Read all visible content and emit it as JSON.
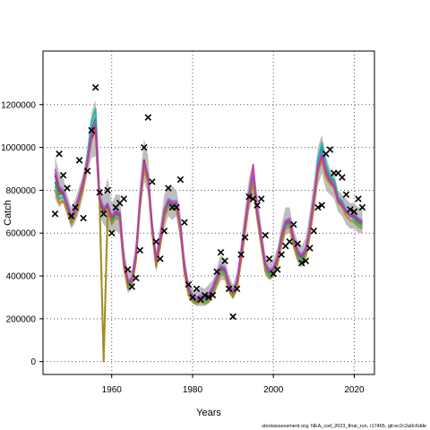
{
  "chart_data": {
    "type": "line",
    "xlabel": "Years",
    "ylabel": "Catch",
    "xlim": [
      1943,
      2025
    ],
    "ylim": [
      -60000,
      1450000
    ],
    "x_ticks": [
      1960,
      1980,
      2000,
      2020
    ],
    "y_ticks": [
      0,
      200000,
      400000,
      600000,
      800000,
      1000000,
      1200000
    ],
    "y_tick_labels": [
      "0",
      "200000",
      "400000",
      "600000",
      "800000",
      "1000000",
      "1200000"
    ],
    "grid": true,
    "caption": "stockassessment.org, NEA_cod_2023_final_run, r17465, git:ec2c2a0c6dde",
    "band": {
      "x": [
        1946,
        1947,
        1948,
        1949,
        1950,
        1951,
        1952,
        1953,
        1954,
        1955,
        1956,
        1957,
        1958,
        1959,
        1960,
        1961,
        1962,
        1963,
        1964,
        1965,
        1966,
        1967,
        1968,
        1969,
        1970,
        1971,
        1972,
        1973,
        1974,
        1975,
        1976,
        1977,
        1978,
        1979,
        1980,
        1981,
        1982,
        1983,
        1984,
        1985,
        1986,
        1987,
        1988,
        1989,
        1990,
        1991,
        1992,
        1993,
        1994,
        1995,
        1996,
        1997,
        1998,
        1999,
        2000,
        2001,
        2002,
        2003,
        2004,
        2005,
        2006,
        2007,
        2008,
        2009,
        2010,
        2011,
        2012,
        2013,
        2014,
        2015,
        2016,
        2017,
        2018,
        2019,
        2020,
        2021,
        2022
      ],
      "lower": [
        760000,
        720000,
        740000,
        680000,
        620000,
        650000,
        700000,
        780000,
        880000,
        950000,
        960000,
        680000,
        640000,
        620000,
        600000,
        610000,
        600000,
        420000,
        320000,
        340000,
        450000,
        680000,
        840000,
        780000,
        580000,
        420000,
        520000,
        620000,
        680000,
        660000,
        680000,
        560000,
        400000,
        300000,
        270000,
        260000,
        260000,
        260000,
        270000,
        300000,
        340000,
        380000,
        380000,
        320000,
        290000,
        330000,
        440000,
        560000,
        700000,
        770000,
        640000,
        520000,
        400000,
        380000,
        390000,
        430000,
        520000,
        590000,
        600000,
        520000,
        460000,
        440000,
        470000,
        560000,
        680000,
        820000,
        880000,
        800000,
        780000,
        760000,
        700000,
        680000,
        640000,
        620000,
        620000,
        600000,
        600000
      ],
      "upper": [
        960000,
        880000,
        860000,
        780000,
        720000,
        760000,
        820000,
        880000,
        1000000,
        1160000,
        1220000,
        820000,
        780000,
        860000,
        740000,
        780000,
        780000,
        540000,
        420000,
        430000,
        560000,
        840000,
        1040000,
        960000,
        680000,
        520000,
        640000,
        780000,
        820000,
        820000,
        800000,
        700000,
        500000,
        380000,
        340000,
        330000,
        350000,
        340000,
        360000,
        380000,
        440000,
        500000,
        480000,
        400000,
        360000,
        420000,
        560000,
        720000,
        860000,
        930000,
        780000,
        640000,
        500000,
        470000,
        480000,
        530000,
        640000,
        720000,
        720000,
        620000,
        560000,
        540000,
        580000,
        700000,
        840000,
        1000000,
        1060000,
        960000,
        900000,
        880000,
        800000,
        780000,
        760000,
        740000,
        740000,
        720000,
        720000
      ]
    },
    "series": [
      {
        "color": "#8B1A1A",
        "values": [
          870000,
          800000,
          780000,
          720000,
          660000,
          700000,
          760000,
          830000,
          930000,
          1040000,
          1080000,
          740000,
          700000,
          730000,
          670000,
          700000,
          690000,
          470000,
          370000,
          380000,
          500000,
          750000,
          940000,
          860000,
          630000,
          470000,
          570000,
          700000,
          750000,
          740000,
          740000,
          630000,
          440000,
          340000,
          300000,
          290000,
          300000,
          300000,
          310000,
          340000,
          390000,
          440000,
          430000,
          360000,
          320000,
          370000,
          500000,
          640000,
          780000,
          860000,
          700000,
          570000,
          450000,
          420000,
          430000,
          480000,
          580000,
          650000,
          660000,
          570000,
          510000,
          490000,
          520000,
          620000,
          760000,
          900000,
          960000,
          880000,
          840000,
          820000,
          750000,
          730000,
          700000,
          680000,
          680000,
          660000,
          650000
        ]
      },
      {
        "color": "#228B22",
        "values": [
          840000,
          780000,
          790000,
          730000,
          670000,
          710000,
          770000,
          840000,
          950000,
          1080000,
          1140000,
          760000,
          710000,
          720000,
          660000,
          690000,
          680000,
          460000,
          360000,
          370000,
          490000,
          740000,
          920000,
          850000,
          620000,
          460000,
          560000,
          690000,
          740000,
          730000,
          730000,
          620000,
          430000,
          330000,
          290000,
          280000,
          290000,
          290000,
          300000,
          330000,
          380000,
          430000,
          420000,
          350000,
          310000,
          360000,
          490000,
          630000,
          770000,
          850000,
          690000,
          560000,
          440000,
          410000,
          420000,
          470000,
          570000,
          640000,
          650000,
          560000,
          500000,
          480000,
          510000,
          610000,
          750000,
          920000,
          1000000,
          900000,
          860000,
          840000,
          760000,
          740000,
          700000,
          680000,
          670000,
          650000,
          640000
        ]
      },
      {
        "color": "#20B2AA",
        "values": [
          820000,
          760000,
          770000,
          710000,
          650000,
          690000,
          750000,
          820000,
          960000,
          1120000,
          1180000,
          750000,
          700,
          700000,
          650000,
          680000,
          670000,
          450000,
          350000,
          360000,
          480000,
          730000,
          910000,
          840000,
          610000,
          450000,
          550000,
          680000,
          730000,
          720000,
          720000,
          610000,
          420000,
          320000,
          280000,
          270000,
          280000,
          280000,
          290000,
          320000,
          370000,
          420000,
          410000,
          340000,
          300000,
          350000,
          480000,
          620000,
          760000,
          840000,
          680000,
          550000,
          430000,
          400000,
          410000,
          460000,
          560000,
          630000,
          640000,
          550000,
          490000,
          470000,
          500000,
          600000,
          740000,
          940000,
          1020000,
          920000,
          870000,
          850000,
          770000,
          750000,
          710000,
          690000,
          660000,
          640000,
          630000
        ]
      },
      {
        "color": "#B8860B",
        "values": [
          800000,
          740000,
          750000,
          700000,
          640000,
          680000,
          740000,
          810000,
          920000,
          1050000,
          1100000,
          730000,
          690,
          710000,
          640000,
          670000,
          660000,
          440000,
          340000,
          350000,
          470000,
          720000,
          900000,
          830000,
          600000,
          440000,
          540000,
          670000,
          720000,
          710000,
          710000,
          600000,
          410000,
          310000,
          280000,
          270000,
          280000,
          270000,
          280000,
          310000,
          360000,
          410000,
          400000,
          330000,
          300000,
          340000,
          470000,
          610000,
          750000,
          830000,
          670000,
          540000,
          420000,
          390000,
          400000,
          450000,
          550000,
          620000,
          630000,
          540000,
          480000,
          460000,
          490000,
          590000,
          730000,
          880000,
          940000,
          860000,
          830000,
          810000,
          740000,
          720000,
          680000,
          660000,
          650000,
          630000,
          620000
        ]
      },
      {
        "color": "#7B68EE",
        "values": [
          900000,
          820000,
          800000,
          740000,
          680000,
          720000,
          780000,
          850000,
          940000,
          1060000,
          1120000,
          770000,
          720000,
          740000,
          680000,
          710000,
          700000,
          480000,
          380000,
          390000,
          510000,
          760000,
          930000,
          870000,
          640000,
          480000,
          580000,
          710000,
          760000,
          750000,
          750000,
          640000,
          450000,
          350000,
          310000,
          300000,
          310000,
          310000,
          320000,
          350000,
          400000,
          450000,
          440000,
          370000,
          330000,
          380000,
          510000,
          650000,
          790000,
          870000,
          710000,
          580000,
          460000,
          430000,
          440000,
          490000,
          590000,
          660000,
          670000,
          580000,
          520000,
          500000,
          530000,
          630000,
          770000,
          910000,
          980000,
          890000,
          850000,
          830000,
          760000,
          740000,
          710000,
          690000,
          690000,
          670000,
          660000
        ]
      },
      {
        "color": "#CC3399",
        "values": [
          880000,
          810000,
          790000,
          730000,
          670000,
          710000,
          770000,
          840000,
          930000,
          1050000,
          1100000,
          760000,
          710000,
          730000,
          670000,
          700000,
          690000,
          470000,
          370000,
          380000,
          500000,
          750000,
          930000,
          860000,
          630000,
          470000,
          570000,
          700000,
          750000,
          740000,
          740000,
          630000,
          440000,
          340000,
          300000,
          290000,
          300000,
          300000,
          310000,
          340000,
          390000,
          440000,
          430000,
          360000,
          320000,
          370000,
          500000,
          640000,
          780000,
          920000,
          700000,
          570000,
          450000,
          420000,
          430000,
          480000,
          580000,
          650000,
          660000,
          570000,
          510000,
          490000,
          520000,
          620000,
          760000,
          900000,
          960000,
          880000,
          840000,
          820000,
          750000,
          730000,
          700000,
          680000,
          680000,
          660000,
          650000
        ]
      }
    ],
    "observed": {
      "x": [
        1946,
        1947,
        1948,
        1949,
        1950,
        1951,
        1952,
        1953,
        1954,
        1955,
        1956,
        1957,
        1958,
        1959,
        1960,
        1961,
        1962,
        1963,
        1964,
        1965,
        1966,
        1967,
        1968,
        1969,
        1970,
        1971,
        1972,
        1973,
        1974,
        1975,
        1976,
        1977,
        1978,
        1979,
        1980,
        1981,
        1982,
        1983,
        1984,
        1985,
        1986,
        1987,
        1988,
        1989,
        1990,
        1991,
        1992,
        1993,
        1994,
        1995,
        1996,
        1997,
        1998,
        1999,
        2000,
        2001,
        2002,
        2003,
        2004,
        2005,
        2006,
        2007,
        2008,
        2009,
        2010,
        2011,
        2012,
        2013,
        2014,
        2015,
        2016,
        2017,
        2018,
        2019,
        2020,
        2021,
        2022
      ],
      "y": [
        690000,
        970000,
        870000,
        810000,
        680000,
        720000,
        940000,
        670000,
        890000,
        1080000,
        1280000,
        790000,
        690000,
        800000,
        600000,
        720000,
        740000,
        760000,
        430000,
        350000,
        390000,
        520000,
        1000000,
        1140000,
        840000,
        560000,
        480000,
        610000,
        810000,
        720000,
        720000,
        850000,
        650000,
        360000,
        300000,
        340000,
        290000,
        310000,
        300000,
        310000,
        420000,
        510000,
        470000,
        340000,
        210000,
        340000,
        500000,
        580000,
        770000,
        760000,
        730000,
        760000,
        590000,
        480000,
        410000,
        430000,
        500000,
        540000,
        560000,
        640000,
        550000,
        460000,
        470000,
        530000,
        610000,
        720000,
        730000,
        970000,
        990000,
        880000,
        880000,
        860000,
        780000,
        710000,
        700000,
        760000,
        720000
      ]
    }
  }
}
